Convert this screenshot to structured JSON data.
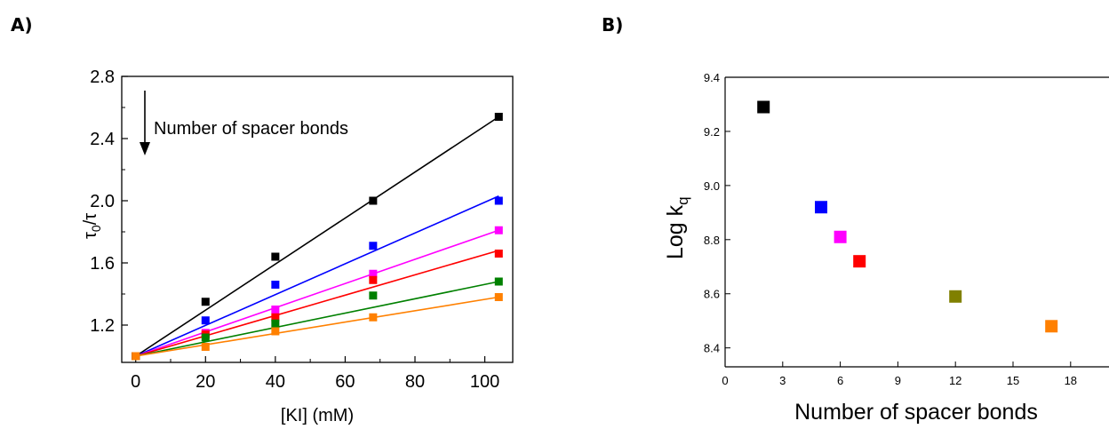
{
  "panels": {
    "a_label": "A)",
    "b_label": "B)"
  },
  "chart_data": [
    {
      "type": "scatter",
      "panel": "A)",
      "xlabel": "[KI] (mM)",
      "ylabel": "τ0/τ",
      "ylabel_main": "τ",
      "ylabel_sub": "0",
      "ylabel_tail": "/τ",
      "xlim": [
        -4,
        108
      ],
      "ylim": [
        0.96,
        2.8
      ],
      "xticks": [
        0,
        20,
        40,
        60,
        80,
        100
      ],
      "yticks": [
        1.2,
        1.6,
        2.0,
        2.4,
        2.8
      ],
      "ytick_labels": [
        "1.2",
        "1.6",
        "2.0",
        "2.4",
        "2.8"
      ],
      "annotation": "Number of spacer bonds",
      "x": [
        0,
        20,
        40,
        68,
        104
      ],
      "series": [
        {
          "color": "#000000",
          "values": [
            1.0,
            1.35,
            1.64,
            2.0,
            2.54
          ],
          "fit": [
            1.0,
            2.54
          ]
        },
        {
          "color": "#0000ff",
          "values": [
            1.0,
            1.23,
            1.46,
            1.71,
            2.0
          ],
          "fit": [
            1.0,
            2.03
          ]
        },
        {
          "color": "#ff00ff",
          "values": [
            1.0,
            1.15,
            1.3,
            1.53,
            1.81
          ],
          "fit": [
            1.0,
            1.81
          ]
        },
        {
          "color": "#ff0000",
          "values": [
            1.0,
            1.14,
            1.25,
            1.49,
            1.66
          ],
          "fit": [
            1.0,
            1.68
          ]
        },
        {
          "color": "#008000",
          "values": [
            1.0,
            1.12,
            1.21,
            1.39,
            1.48
          ],
          "fit": [
            1.0,
            1.48
          ]
        },
        {
          "color": "#ff8000",
          "values": [
            1.0,
            1.06,
            1.16,
            1.25,
            1.38
          ],
          "fit": [
            1.0,
            1.38
          ]
        }
      ]
    },
    {
      "type": "scatter",
      "panel": "B)",
      "xlabel": "Number of spacer bonds",
      "ylabel": "Log kq",
      "ylabel_main": "Log k",
      "ylabel_sub": "q",
      "xlim": [
        0,
        20
      ],
      "ylim": [
        8.33,
        9.4
      ],
      "xticks": [
        0,
        3,
        6,
        9,
        12,
        15,
        18
      ],
      "yticks": [
        8.4,
        8.6,
        8.8,
        9.0,
        9.2,
        9.4
      ],
      "ytick_labels": [
        "8.4",
        "8.6",
        "8.8",
        "9.0",
        "9.2",
        "9.4"
      ],
      "points": [
        {
          "x": 2,
          "y": 9.29,
          "color": "#000000"
        },
        {
          "x": 5,
          "y": 8.92,
          "color": "#0000ff"
        },
        {
          "x": 6,
          "y": 8.81,
          "color": "#ff00ff"
        },
        {
          "x": 7,
          "y": 8.72,
          "color": "#ff0000"
        },
        {
          "x": 12,
          "y": 8.59,
          "color": "#808000"
        },
        {
          "x": 17,
          "y": 8.48,
          "color": "#ff8000"
        }
      ]
    }
  ]
}
